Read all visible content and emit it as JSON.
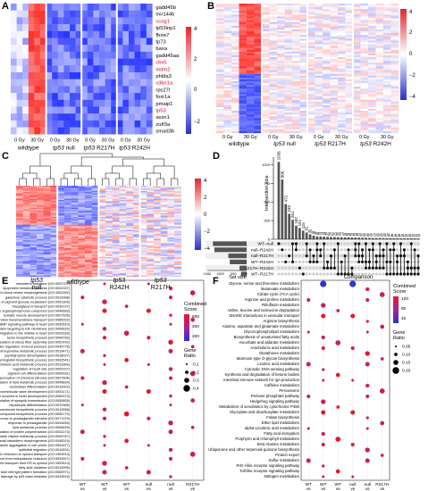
{
  "panels": {
    "A": {
      "label": "A",
      "genes": [
        {
          "name": "gadd45b",
          "color": "#000000"
        },
        {
          "name": "mir144b",
          "color": "#000000"
        },
        {
          "name": "ccng1",
          "color": "#d0021b"
        },
        {
          "name": "tp53inp1",
          "color": "#000000"
        },
        {
          "name": "fbxw7",
          "color": "#000000"
        },
        {
          "name": "tp73",
          "color": "#000000"
        },
        {
          "name": "baxa",
          "color": "#000000"
        },
        {
          "name": "gadd45aa",
          "color": "#000000"
        },
        {
          "name": "cbx5",
          "color": "#d0021b"
        },
        {
          "name": "mdm2",
          "color": "#d0021b"
        },
        {
          "name": "phlda3",
          "color": "#000000"
        },
        {
          "name": "cdkn1a",
          "color": "#d0021b"
        },
        {
          "name": "rps27l",
          "color": "#000000"
        },
        {
          "name": "foxr1a",
          "color": "#000000"
        },
        {
          "name": "pmaip1",
          "color": "#000000"
        },
        {
          "name": "tp53",
          "color": "#d0021b"
        },
        {
          "name": "sesn1",
          "color": "#000000"
        },
        {
          "name": "zutf3a",
          "color": "#000000"
        },
        {
          "name": "smad3b",
          "color": "#000000"
        }
      ],
      "colorbar": [
        "4",
        "2",
        "0",
        "−2"
      ],
      "groups": [
        "wildtype",
        "tp53 null",
        "tp53 R217H",
        "tp53 R242H"
      ],
      "doses": [
        "0 Gy",
        "30 Gy"
      ]
    },
    "B": {
      "label": "B",
      "colorbar": [
        "4",
        "2",
        "0",
        "−2",
        "−4"
      ],
      "groups": [
        "wildtype",
        "tp53 null",
        "tp53 R217H",
        "tp53 R242H"
      ],
      "doses": [
        "0 Gy",
        "30 Gy"
      ]
    },
    "C": {
      "label": "C",
      "colorbar": [
        "4",
        "2",
        "0",
        "−2",
        "−4"
      ],
      "groups": [
        "tp53 null",
        "wildtype",
        "tp53 R242H",
        "tp53 R217H"
      ]
    },
    "D": {
      "label": "D",
      "y_axis_label": "Intersection size",
      "x_axis_label": "Comparison",
      "set_size_label": "Set size",
      "set_size_ticks": [
        "1000",
        "1500",
        "500",
        "0"
      ],
      "sets": [
        {
          "name": "WT–null",
          "size": 1200
        },
        {
          "name": "null–R242H",
          "size": 1150
        },
        {
          "name": "null–R217H",
          "size": 650
        },
        {
          "name": "WT–R242H",
          "size": 600
        },
        {
          "name": "R217H–R242H",
          "size": 250
        },
        {
          "name": "WT–R217H",
          "size": 200
        }
      ],
      "bar_color": "#555555"
    },
    "E": {
      "label": "E",
      "legend_score_title": "Combined Score",
      "legend_score_ticks": [
        "600",
        "400",
        "200"
      ],
      "legend_ratio_title": "Gene Ratio",
      "legend_ratio_ticks": [
        "0.1",
        "0.2",
        "0.3",
        "0.4"
      ],
      "x_ticks": [
        "WT vs null",
        "WT vs R217H",
        "WT vs R242H",
        "null vs R217H",
        "null vs R242H",
        "R217H vs R242H"
      ],
      "terms": [
        "mesoderm formation (GO:0001707)",
        "lipoprotein metabolic process (GO:0042157)",
        "apoptotic process involved in blood vessel morphogenesis (GO:1902262)",
        "galactose catabolic process (GO:0019388)",
        "establishment of pigment granule localization (GO:0051905)",
        "triacylglycerol transport (GO:0034197)",
        "response to organophosphorus compound (GO:0046683)",
        "somatic muscle development (GO:0007525)",
        "intracellular protein transmembrane transport (GO:0065002)",
        "regulation of BMP signaling pathway in heart (GO:0030510)",
        "posttranslational protein targeting to ER membrane (GO:0006620)",
        "cardioblast migration to the midline in heart (GO:0003318)",
        "heme biosynthetic process (GO:0006783)",
        "regulation of stress fiber assembly (GO:0051492)",
        "negative regulation of blood pressure (GO:0045776)",
        "4-hydroxyproline metabolic process (GO:0019471)",
        "peptidyl-lysine dimethylation (GO:0018027)",
        "hemoglobin biosynthetic process (GO:0042541)",
        "arachidonic acid metabolic process (GO:0019369)",
        "regulation of heart rate (GO:0002027)",
        "pigment cell differentiation (GO:0050931)",
        "sensory perception of chemical stimulus (GO:0007606)",
        "positive regulation of lipid metabolic process (GO:0045834)",
        "cardioblast differentiation (GO:0010002)",
        "atrioventricular valve development (GO:0003171)",
        "cell migration involved in heart development (GO:0060973)",
        "negative regulation of synaptic transmission (GO:0050805)",
        "hepatocyte differentiation (GO:0070365)",
        "negative regulation of macromolecule biosynthetic process (GO:0010558)",
        "porphyrin-containing compound biosynthetic process (GO:0006779)",
        "cellular response to prostaglandin stimulus (GO:0071379)",
        "response to prostaglandin (GO:0034694)",
        "lipid metabolic process (GO:0006629)",
        "positive regulation of protein polymerization (GO:0032273)",
        "water-soluble vitamin metabolic process (GO:0006767)",
        "axial mesoderm morphogenesis (GO:0048319)",
        "pigment granule aggregation in cell center (GO:0051877)",
        "epithelial migration (GO:0010631)",
        "endoplasmic reticulum to cytosol transport (GO:1903513)",
        "protein exit from endoplasmic reticulum (GO:0032527)",
        "protein transport from ER to cytosol (GO:1903513)",
        "fatty acid oxidation (GO:0019395)",
        "embryonic heart tube left/right pattern formation (GO:0060971)",
        "regulation of DNA damage by p53 class mediator (GO:0043516)"
      ]
    },
    "F": {
      "label": "F",
      "legend_score_title": "Combined Score",
      "legend_score_ticks": [
        "120",
        "80",
        "40"
      ],
      "legend_ratio_title": "Gene Ratio",
      "legend_ratio_ticks": [
        "0.05",
        "0.10",
        "0.15",
        "0.20"
      ],
      "x_ticks": [
        "WT vs null",
        "WT vs R217H",
        "WT vs R242H",
        "null vs R217H",
        "null vs R242H",
        "R217H vs R242H"
      ],
      "terms": [
        "Glycine, serine and threonine metabolism",
        "Butanoate metabolism",
        "Citrate cycle (TCA cycle)",
        "Arginine and proline metabolism",
        "Riboflavin metabolism",
        "Valine, leucine and isoleucine degradation",
        "SNARE interactions in vesicular transport",
        "Arginine biosynthesis",
        "Alanine, aspartate and glutamate metabolism",
        "Glycerophospholipid metabolism",
        "Biosynthesis of unsaturated fatty acids",
        "Ascorbate and aldarate metabolism",
        "Arachidonic acid metabolism",
        "Glutathione metabolism",
        "Mannose type O-glycan biosynthesis",
        "Linoleic acid metabolism",
        "Cytosolic DNA-sensing pathway",
        "Synthesis and degradation of ketone bodies",
        "Intestinal immune network for IgA production",
        "Caffeine metabolism",
        "Peroxisome",
        "Pentose phosphate pathway",
        "Hedgehog signaling pathway",
        "Metabolism of xenobiotics by cytochrome P450",
        "Glyoxylate and dicarboxylate metabolism",
        "Folate biosynthesis",
        "Ether lipid metabolism",
        "alpha-Linolenic acid metabolism",
        "Fatty acid elongation",
        "Porphyrin and chlorophyll metabolism",
        "beta-Alanine metabolism",
        "Ubiquinone and other terpenoid-quinone biosynthesis",
        "Protein export",
        "Sulfur metabolism",
        "RIG-I-like receptor signaling pathway",
        "Toll-like receptor signaling pathway",
        "Nitrogen metabolism"
      ]
    }
  },
  "chart_data": [
    {
      "type": "bar",
      "panel": "D",
      "title": "",
      "ylabel": "Intersection size",
      "xlabel": "Comparison",
      "categories": [
        "1",
        "2",
        "3",
        "4",
        "5",
        "6",
        "7",
        "8",
        "9",
        "10",
        "11",
        "12",
        "13",
        "14",
        "15",
        "16",
        "17",
        "18",
        "19",
        "20",
        "21",
        "22",
        "23",
        "24",
        "25",
        "26",
        "27",
        "28",
        "29",
        "30",
        "31",
        "32",
        "33",
        "34",
        "35",
        "36",
        "37",
        "38",
        "39",
        "40",
        "41"
      ],
      "values": [
        1036,
        800,
        472,
        340,
        261,
        182,
        151,
        115,
        91,
        66,
        49,
        38,
        37,
        35,
        32,
        31,
        30,
        28,
        27,
        26,
        25,
        24,
        23,
        21,
        20,
        19,
        18,
        17,
        16,
        16,
        15,
        15,
        14,
        14,
        13,
        12,
        12,
        12,
        12,
        11,
        10
      ],
      "data_labels": [
        "1036",
        "800",
        "472",
        "340",
        "261",
        "182",
        "151",
        "115",
        "91",
        "66",
        "49",
        "38",
        "37",
        "35",
        "32",
        "31",
        "30",
        "28",
        "27",
        "26",
        "25",
        "24",
        "23",
        "21",
        "20",
        "19",
        "18",
        "17",
        "16",
        "16",
        "15",
        "15",
        "14",
        "14",
        "13",
        "12",
        "12",
        "12",
        "12",
        "11",
        "10"
      ]
    }
  ]
}
